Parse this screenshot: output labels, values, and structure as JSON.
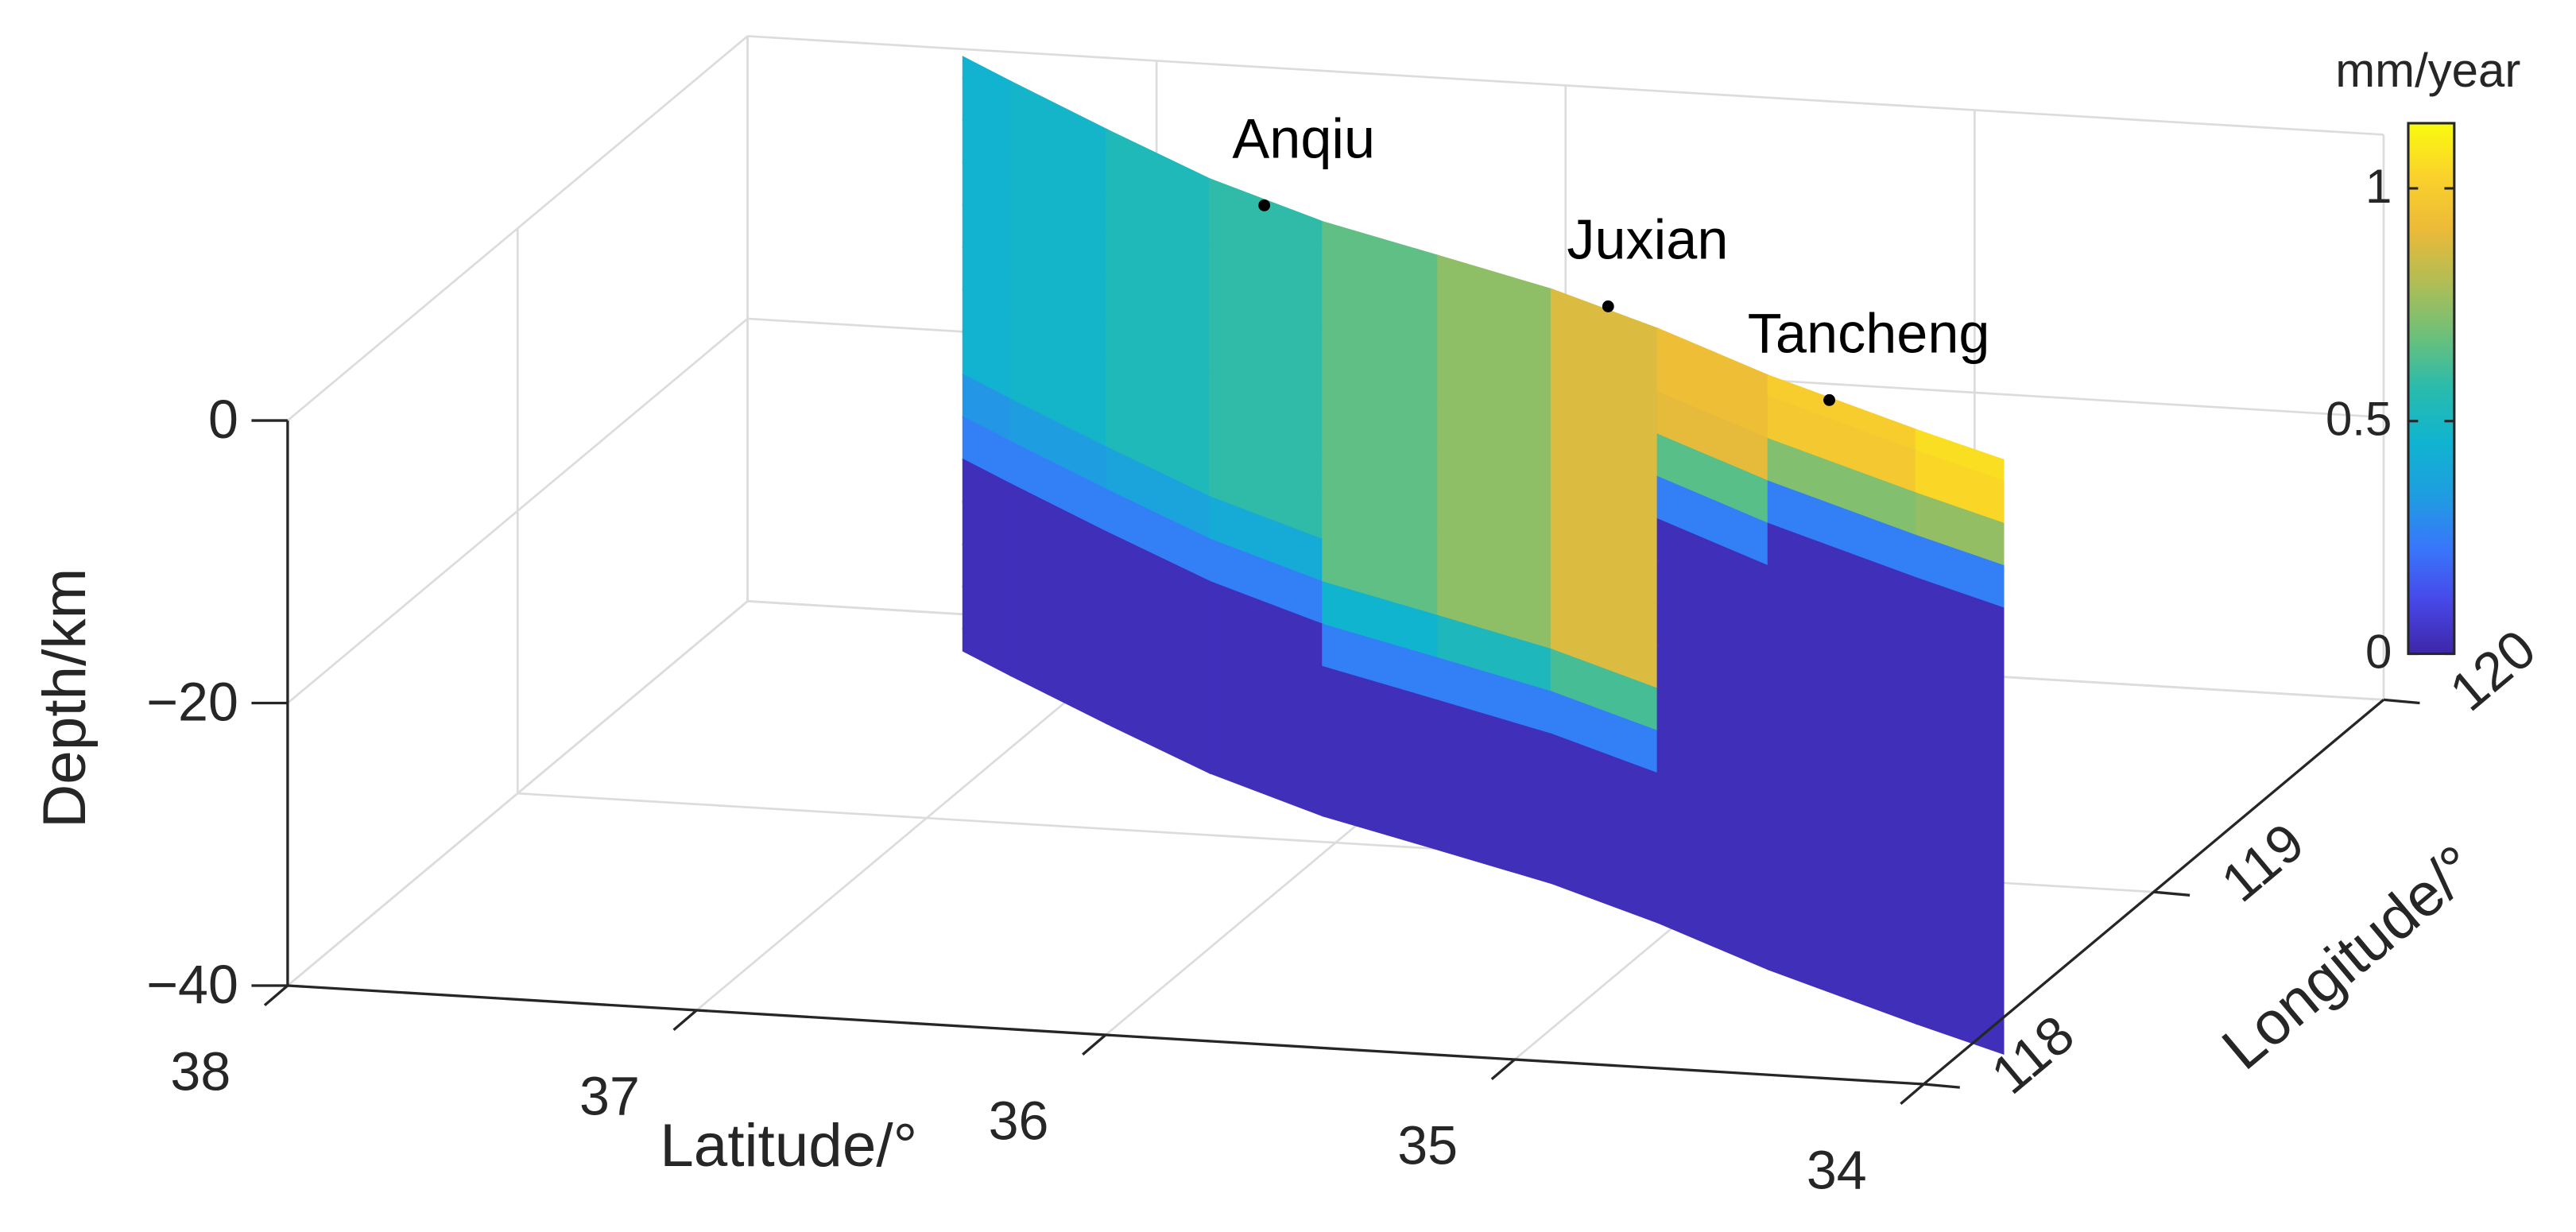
{
  "chart_data": {
    "type": "surface3d",
    "xlabel": "Latitude/°",
    "ylabel": "Longitude/°",
    "zlabel": "Depth/km",
    "xlim": [
      38,
      34
    ],
    "xticks": [
      38,
      37,
      36,
      35,
      34
    ],
    "ylim": [
      118,
      120
    ],
    "yticks": [
      118,
      119,
      120
    ],
    "zlim": [
      -40,
      0
    ],
    "zticks": [
      0,
      {
        "value": -20,
        "label": "−20"
      },
      {
        "value": -40,
        "label": "−40"
      }
    ],
    "grid": true,
    "colormap": [
      "#3e26a8",
      "#4748e8",
      "#3877fb",
      "#1e9ee0",
      "#10b4d0",
      "#29bbad",
      "#6dc079",
      "#b1bd55",
      "#ecba38",
      "#fad22b",
      "#f9fb0e"
    ],
    "colorbar": {
      "label": "mm/year",
      "clim": [
        0,
        1.14
      ],
      "ticks": [
        0,
        0.5,
        1
      ]
    },
    "surface": {
      "lat": [
        37.45,
        37.1,
        36.75,
        36.36,
        36.0,
        35.65,
        35.3,
        34.95,
        34.54,
        33.98
      ],
      "lon": [
        119.96,
        119.75,
        119.55,
        119.33,
        119.2,
        119.07,
        118.94,
        118.75,
        118.55,
        118.31
      ],
      "depth": [
        0,
        -3,
        -6,
        -9,
        -12,
        -15,
        -18,
        -21,
        -24,
        -27,
        -30,
        -33,
        -36,
        -39,
        -42
      ],
      "values": [
        [
          0.45,
          0.48,
          0.53,
          0.58,
          0.66,
          0.74,
          0.88,
          0.93,
          1.0,
          1.06
        ],
        [
          0.45,
          0.48,
          0.53,
          0.58,
          0.66,
          0.74,
          0.88,
          0.93,
          0.98,
          1.04
        ],
        [
          0.45,
          0.48,
          0.53,
          0.58,
          0.66,
          0.74,
          0.88,
          0.9,
          0.72,
          0.75
        ],
        [
          0.45,
          0.48,
          0.53,
          0.58,
          0.66,
          0.74,
          0.88,
          0.65,
          0.25,
          0.25
        ],
        [
          0.45,
          0.48,
          0.53,
          0.58,
          0.66,
          0.74,
          0.88,
          0.25,
          0.03,
          0.03
        ],
        [
          0.45,
          0.48,
          0.53,
          0.58,
          0.66,
          0.74,
          0.88,
          0.03,
          0.03,
          0.03
        ],
        [
          0.45,
          0.48,
          0.53,
          0.58,
          0.66,
          0.74,
          0.88,
          0.03,
          0.03,
          0.03
        ],
        [
          0.45,
          0.48,
          0.53,
          0.58,
          0.66,
          0.74,
          0.88,
          0.03,
          0.03,
          0.03
        ],
        [
          0.32,
          0.34,
          0.37,
          0.41,
          0.66,
          0.74,
          0.88,
          0.03,
          0.03,
          0.03
        ],
        [
          0.25,
          0.25,
          0.25,
          0.25,
          0.46,
          0.52,
          0.62,
          0.03,
          0.03,
          0.03
        ],
        [
          0.03,
          0.03,
          0.03,
          0.03,
          0.25,
          0.25,
          0.25,
          0.03,
          0.03,
          0.03
        ],
        [
          0.03,
          0.03,
          0.03,
          0.03,
          0.03,
          0.03,
          0.03,
          0.03,
          0.03,
          0.03
        ],
        [
          0.03,
          0.03,
          0.03,
          0.03,
          0.03,
          0.03,
          0.03,
          0.03,
          0.03,
          0.03
        ],
        [
          0.03,
          0.03,
          0.03,
          0.03,
          0.03,
          0.03,
          0.03,
          0.03,
          0.03,
          0.03
        ],
        [
          0.03,
          0.03,
          0.03,
          0.03,
          0.03,
          0.03,
          0.03,
          0.03,
          0.03,
          0.03
        ]
      ]
    },
    "stations": [
      {
        "name": "Anqiu",
        "lat": 36.36,
        "lon": 119.33
      },
      {
        "name": "Juxian",
        "lat": 35.3,
        "lon": 118.94
      },
      {
        "name": "Tancheng",
        "lat": 34.54,
        "lon": 118.55
      }
    ]
  }
}
